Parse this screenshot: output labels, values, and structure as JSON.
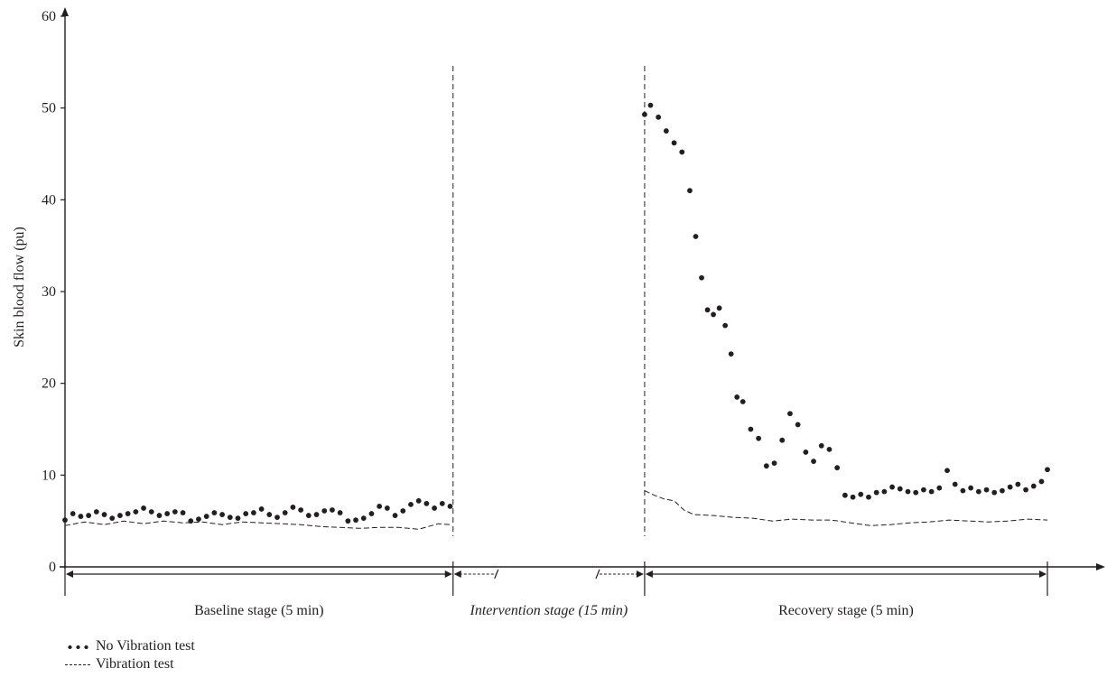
{
  "chart_data": {
    "type": "line",
    "title": "",
    "ylabel": "Skin blood flow (pu)",
    "xlabel": "",
    "ylim": [
      0,
      60
    ],
    "yticks": [
      0,
      10,
      20,
      30,
      40,
      50,
      60
    ],
    "xlim": [
      0,
      1
    ],
    "grid": false,
    "stages": [
      {
        "name": "baseline",
        "label": "Baseline stage (5 min)",
        "italic": false,
        "start": 0.0,
        "end": 0.395
      },
      {
        "name": "intervention",
        "label": "Intervention stage (15 min)",
        "italic": true,
        "start": 0.395,
        "end": 0.59
      },
      {
        "name": "recovery",
        "label": "Recovery stage (5 min)",
        "italic": false,
        "start": 0.59,
        "end": 1.0
      }
    ],
    "series": [
      {
        "name": "No Vibration test",
        "style": "dotted",
        "color": "#231f20",
        "segments": [
          {
            "x": [
              0.0,
              0.008,
              0.016,
              0.024,
              0.032,
              0.04,
              0.048,
              0.056,
              0.064,
              0.072,
              0.08,
              0.088,
              0.096,
              0.104,
              0.112,
              0.12,
              0.128,
              0.136,
              0.144,
              0.152,
              0.16,
              0.168,
              0.176,
              0.184,
              0.192,
              0.2,
              0.208,
              0.216,
              0.224,
              0.232,
              0.24,
              0.248,
              0.256,
              0.264,
              0.272,
              0.28,
              0.288,
              0.296,
              0.304,
              0.312,
              0.32,
              0.328,
              0.336,
              0.344,
              0.352,
              0.36,
              0.368,
              0.376,
              0.384,
              0.392
            ],
            "y": [
              5.1,
              5.8,
              5.5,
              5.6,
              6.0,
              5.7,
              5.3,
              5.6,
              5.8,
              6.0,
              6.4,
              6.0,
              5.6,
              5.8,
              6.0,
              5.9,
              5.0,
              5.2,
              5.5,
              5.9,
              5.7,
              5.4,
              5.3,
              5.8,
              5.9,
              6.3,
              5.7,
              5.4,
              5.9,
              6.5,
              6.2,
              5.6,
              5.7,
              6.1,
              6.2,
              5.9,
              5.0,
              5.1,
              5.3,
              5.8,
              6.6,
              6.4,
              5.6,
              6.1,
              6.8,
              7.2,
              6.9,
              6.4,
              6.9,
              6.6
            ]
          },
          {
            "x": [
              0.59,
              0.596,
              0.604,
              0.612,
              0.62,
              0.628,
              0.636,
              0.642,
              0.648,
              0.654,
              0.66,
              0.666,
              0.672,
              0.678,
              0.684,
              0.69,
              0.698,
              0.706,
              0.714,
              0.722,
              0.73,
              0.738,
              0.746,
              0.754,
              0.762,
              0.77,
              0.778,
              0.786,
              0.794,
              0.802,
              0.81,
              0.818,
              0.826,
              0.834,
              0.842,
              0.85,
              0.858,
              0.866,
              0.874,
              0.882,
              0.89,
              0.898,
              0.906,
              0.914,
              0.922,
              0.93,
              0.938,
              0.946,
              0.954,
              0.962,
              0.97,
              0.978,
              0.986,
              0.994,
              1.0
            ],
            "y": [
              49.3,
              50.3,
              49.0,
              47.5,
              46.2,
              45.2,
              41.0,
              36.0,
              31.5,
              28.0,
              27.5,
              28.2,
              26.3,
              23.2,
              18.5,
              18.0,
              15.0,
              14.0,
              11.0,
              11.3,
              13.8,
              16.7,
              15.5,
              12.5,
              11.5,
              13.2,
              12.8,
              10.8,
              7.8,
              7.6,
              7.9,
              7.6,
              8.1,
              8.2,
              8.7,
              8.5,
              8.2,
              8.1,
              8.4,
              8.2,
              8.6,
              10.5,
              9.0,
              8.3,
              8.6,
              8.2,
              8.4,
              8.1,
              8.3,
              8.7,
              9.0,
              8.4,
              8.8,
              9.3,
              10.6
            ]
          }
        ]
      },
      {
        "name": "Vibration test",
        "style": "dashed",
        "color": "#231f20",
        "segments": [
          {
            "x": [
              0.0,
              0.02,
              0.04,
              0.06,
              0.08,
              0.1,
              0.12,
              0.14,
              0.16,
              0.18,
              0.2,
              0.22,
              0.24,
              0.26,
              0.28,
              0.3,
              0.32,
              0.34,
              0.36,
              0.38,
              0.392
            ],
            "y": [
              4.5,
              4.9,
              4.6,
              5.0,
              4.7,
              5.0,
              4.8,
              4.9,
              4.6,
              4.9,
              4.8,
              4.7,
              4.6,
              4.4,
              4.3,
              4.2,
              4.3,
              4.3,
              4.1,
              4.7,
              4.6
            ]
          },
          {
            "x": [
              0.59,
              0.6,
              0.61,
              0.62,
              0.63,
              0.64,
              0.66,
              0.68,
              0.7,
              0.72,
              0.74,
              0.76,
              0.78,
              0.8,
              0.82,
              0.84,
              0.86,
              0.88,
              0.9,
              0.92,
              0.94,
              0.96,
              0.98,
              1.0
            ],
            "y": [
              8.3,
              7.8,
              7.4,
              7.2,
              6.2,
              5.7,
              5.6,
              5.4,
              5.3,
              5.0,
              5.2,
              5.1,
              5.1,
              4.8,
              4.5,
              4.6,
              4.8,
              4.9,
              5.1,
              5.0,
              4.9,
              5.0,
              5.2,
              5.1
            ]
          }
        ]
      }
    ],
    "legend": {
      "placement": "bottom-left",
      "entries": [
        {
          "label": "No Vibration test",
          "style": "dotted"
        },
        {
          "label": "Vibration test",
          "style": "dashed"
        }
      ]
    }
  }
}
